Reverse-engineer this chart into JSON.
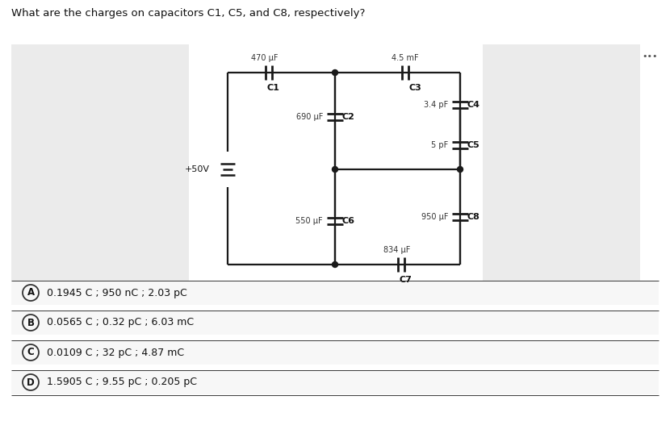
{
  "title": "What are the charges on capacitors C1, C5, and C8, respectively?",
  "title_fontsize": 9.5,
  "choices": [
    {
      "label": "A",
      "text": "0.1945 C ; 950 nC ; 2.03 pC"
    },
    {
      "label": "B",
      "text": "0.0565 C ; 0.32 pC ; 6.03 mC"
    },
    {
      "label": "C",
      "text": "0.0109 C ; 32 pC ; 4.87 mC"
    },
    {
      "label": "D",
      "text": "1.5905 C ; 9.55 pC ; 0.205 pC"
    }
  ],
  "c1_value": "470 μF",
  "c2_value": "690 μF",
  "c3_value": "4.5 mF",
  "c4_value": "3.4 pF",
  "c5_value": "5 pF",
  "c6_value": "550 μF",
  "c7_value": "834 μF",
  "c8_value": "950 μF",
  "vs_value": "+50V",
  "line_color": "#1a1a1a",
  "bg_gray": "#eeeeee",
  "choice_border": "#cccccc",
  "choice_bg": "#f7f7f7"
}
